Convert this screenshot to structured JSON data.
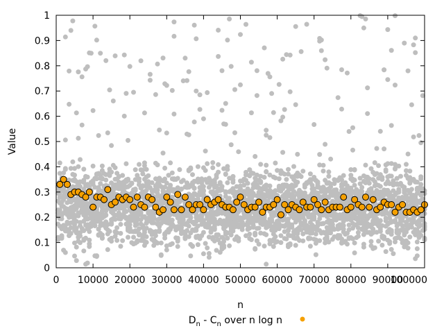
{
  "chart_data": {
    "type": "scatter",
    "title": "",
    "xlabel": "n",
    "ylabel": "Value",
    "xlim": [
      0,
      100000
    ],
    "ylim": [
      0,
      1
    ],
    "grid": false,
    "legend_placement": "bottom",
    "x_ticks": [
      "0",
      "10000",
      "20000",
      "30000",
      "40000",
      "50000",
      "60000",
      "70000",
      "80000",
      "90000",
      "100000"
    ],
    "y_ticks": [
      "0",
      "0.1",
      "0.2",
      "0.3",
      "0.4",
      "0.5",
      "0.6",
      "0.7",
      "0.8",
      "0.9",
      "1"
    ],
    "legend": {
      "label_parts": [
        {
          "text": "D",
          "sub": false
        },
        {
          "text": "n",
          "sub": true
        },
        {
          "text": " - C",
          "sub": false
        },
        {
          "text": "n",
          "sub": true
        },
        {
          "text": " over n log n",
          "sub": false
        }
      ],
      "color": "#f5a000"
    },
    "background_series": {
      "color": "#bebebe",
      "x_step": 500,
      "points_per_x": 15,
      "y_mean": 0.24,
      "y_spread": 0.12,
      "y_max": 1.0
    },
    "series": [
      {
        "color": "#f5a000",
        "edge_color": "#000000",
        "x": [
          1000,
          2000,
          3000,
          4000,
          5000,
          6000,
          7000,
          8000,
          9000,
          10000,
          11000,
          12000,
          13000,
          14000,
          15000,
          16000,
          17000,
          18000,
          19000,
          20000,
          21000,
          22000,
          23000,
          24000,
          25000,
          26000,
          27000,
          28000,
          29000,
          30000,
          31000,
          32000,
          33000,
          34000,
          35000,
          36000,
          37000,
          38000,
          39000,
          40000,
          41000,
          42000,
          43000,
          44000,
          45000,
          46000,
          47000,
          48000,
          49000,
          50000,
          51000,
          52000,
          53000,
          54000,
          55000,
          56000,
          57000,
          58000,
          59000,
          60000,
          61000,
          62000,
          63000,
          64000,
          65000,
          66000,
          67000,
          68000,
          69000,
          70000,
          71000,
          72000,
          73000,
          74000,
          75000,
          76000,
          77000,
          78000,
          79000,
          80000,
          81000,
          82000,
          83000,
          84000,
          85000,
          86000,
          87000,
          88000,
          89000,
          90000,
          91000,
          92000,
          93000,
          94000,
          95000,
          96000,
          97000,
          98000,
          99000,
          100000
        ],
        "y": [
          0.33,
          0.35,
          0.33,
          0.29,
          0.3,
          0.3,
          0.29,
          0.28,
          0.3,
          0.24,
          0.28,
          0.28,
          0.27,
          0.31,
          0.25,
          0.26,
          0.28,
          0.27,
          0.28,
          0.27,
          0.24,
          0.28,
          0.25,
          0.24,
          0.28,
          0.27,
          0.24,
          0.22,
          0.23,
          0.28,
          0.26,
          0.23,
          0.29,
          0.23,
          0.28,
          0.25,
          0.23,
          0.25,
          0.25,
          0.23,
          0.27,
          0.25,
          0.26,
          0.27,
          0.25,
          0.24,
          0.24,
          0.23,
          0.26,
          0.28,
          0.25,
          0.23,
          0.24,
          0.24,
          0.26,
          0.22,
          0.24,
          0.24,
          0.25,
          0.27,
          0.21,
          0.25,
          0.23,
          0.25,
          0.24,
          0.23,
          0.26,
          0.24,
          0.24,
          0.27,
          0.25,
          0.23,
          0.26,
          0.23,
          0.24,
          0.24,
          0.24,
          0.28,
          0.23,
          0.24,
          0.27,
          0.25,
          0.24,
          0.28,
          0.24,
          0.27,
          0.23,
          0.24,
          0.26,
          0.25,
          0.25,
          0.22,
          0.24,
          0.25,
          0.22,
          0.22,
          0.23,
          0.22,
          0.23,
          0.25
        ]
      }
    ]
  }
}
